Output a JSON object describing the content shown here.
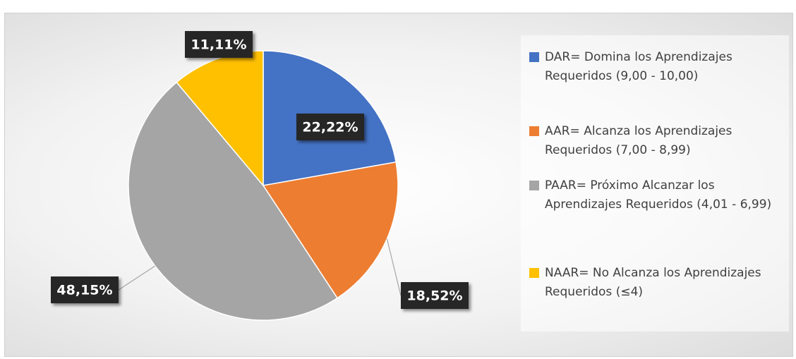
{
  "chart_data": {
    "type": "pie",
    "categories": [
      "DAR= Domina los Aprendizajes Requeridos (9,00 - 10,00)",
      "AAR= Alcanza los Aprendizajes Requeridos (7,00 - 8,99)",
      "PAAR= Próximo Alcanzar los Aprendizajes Requeridos (4,01 - 6,99)",
      "NAAR= No Alcanza los Aprendizajes Requeridos (≤4)"
    ],
    "values": [
      22.22,
      18.52,
      48.15,
      11.11
    ],
    "value_labels": [
      "22,22%",
      "18,52%",
      "48,15%",
      "11,11%"
    ],
    "colors": [
      "#4472c4",
      "#ed7d31",
      "#a5a5a5",
      "#ffc000"
    ],
    "legend": "right"
  }
}
